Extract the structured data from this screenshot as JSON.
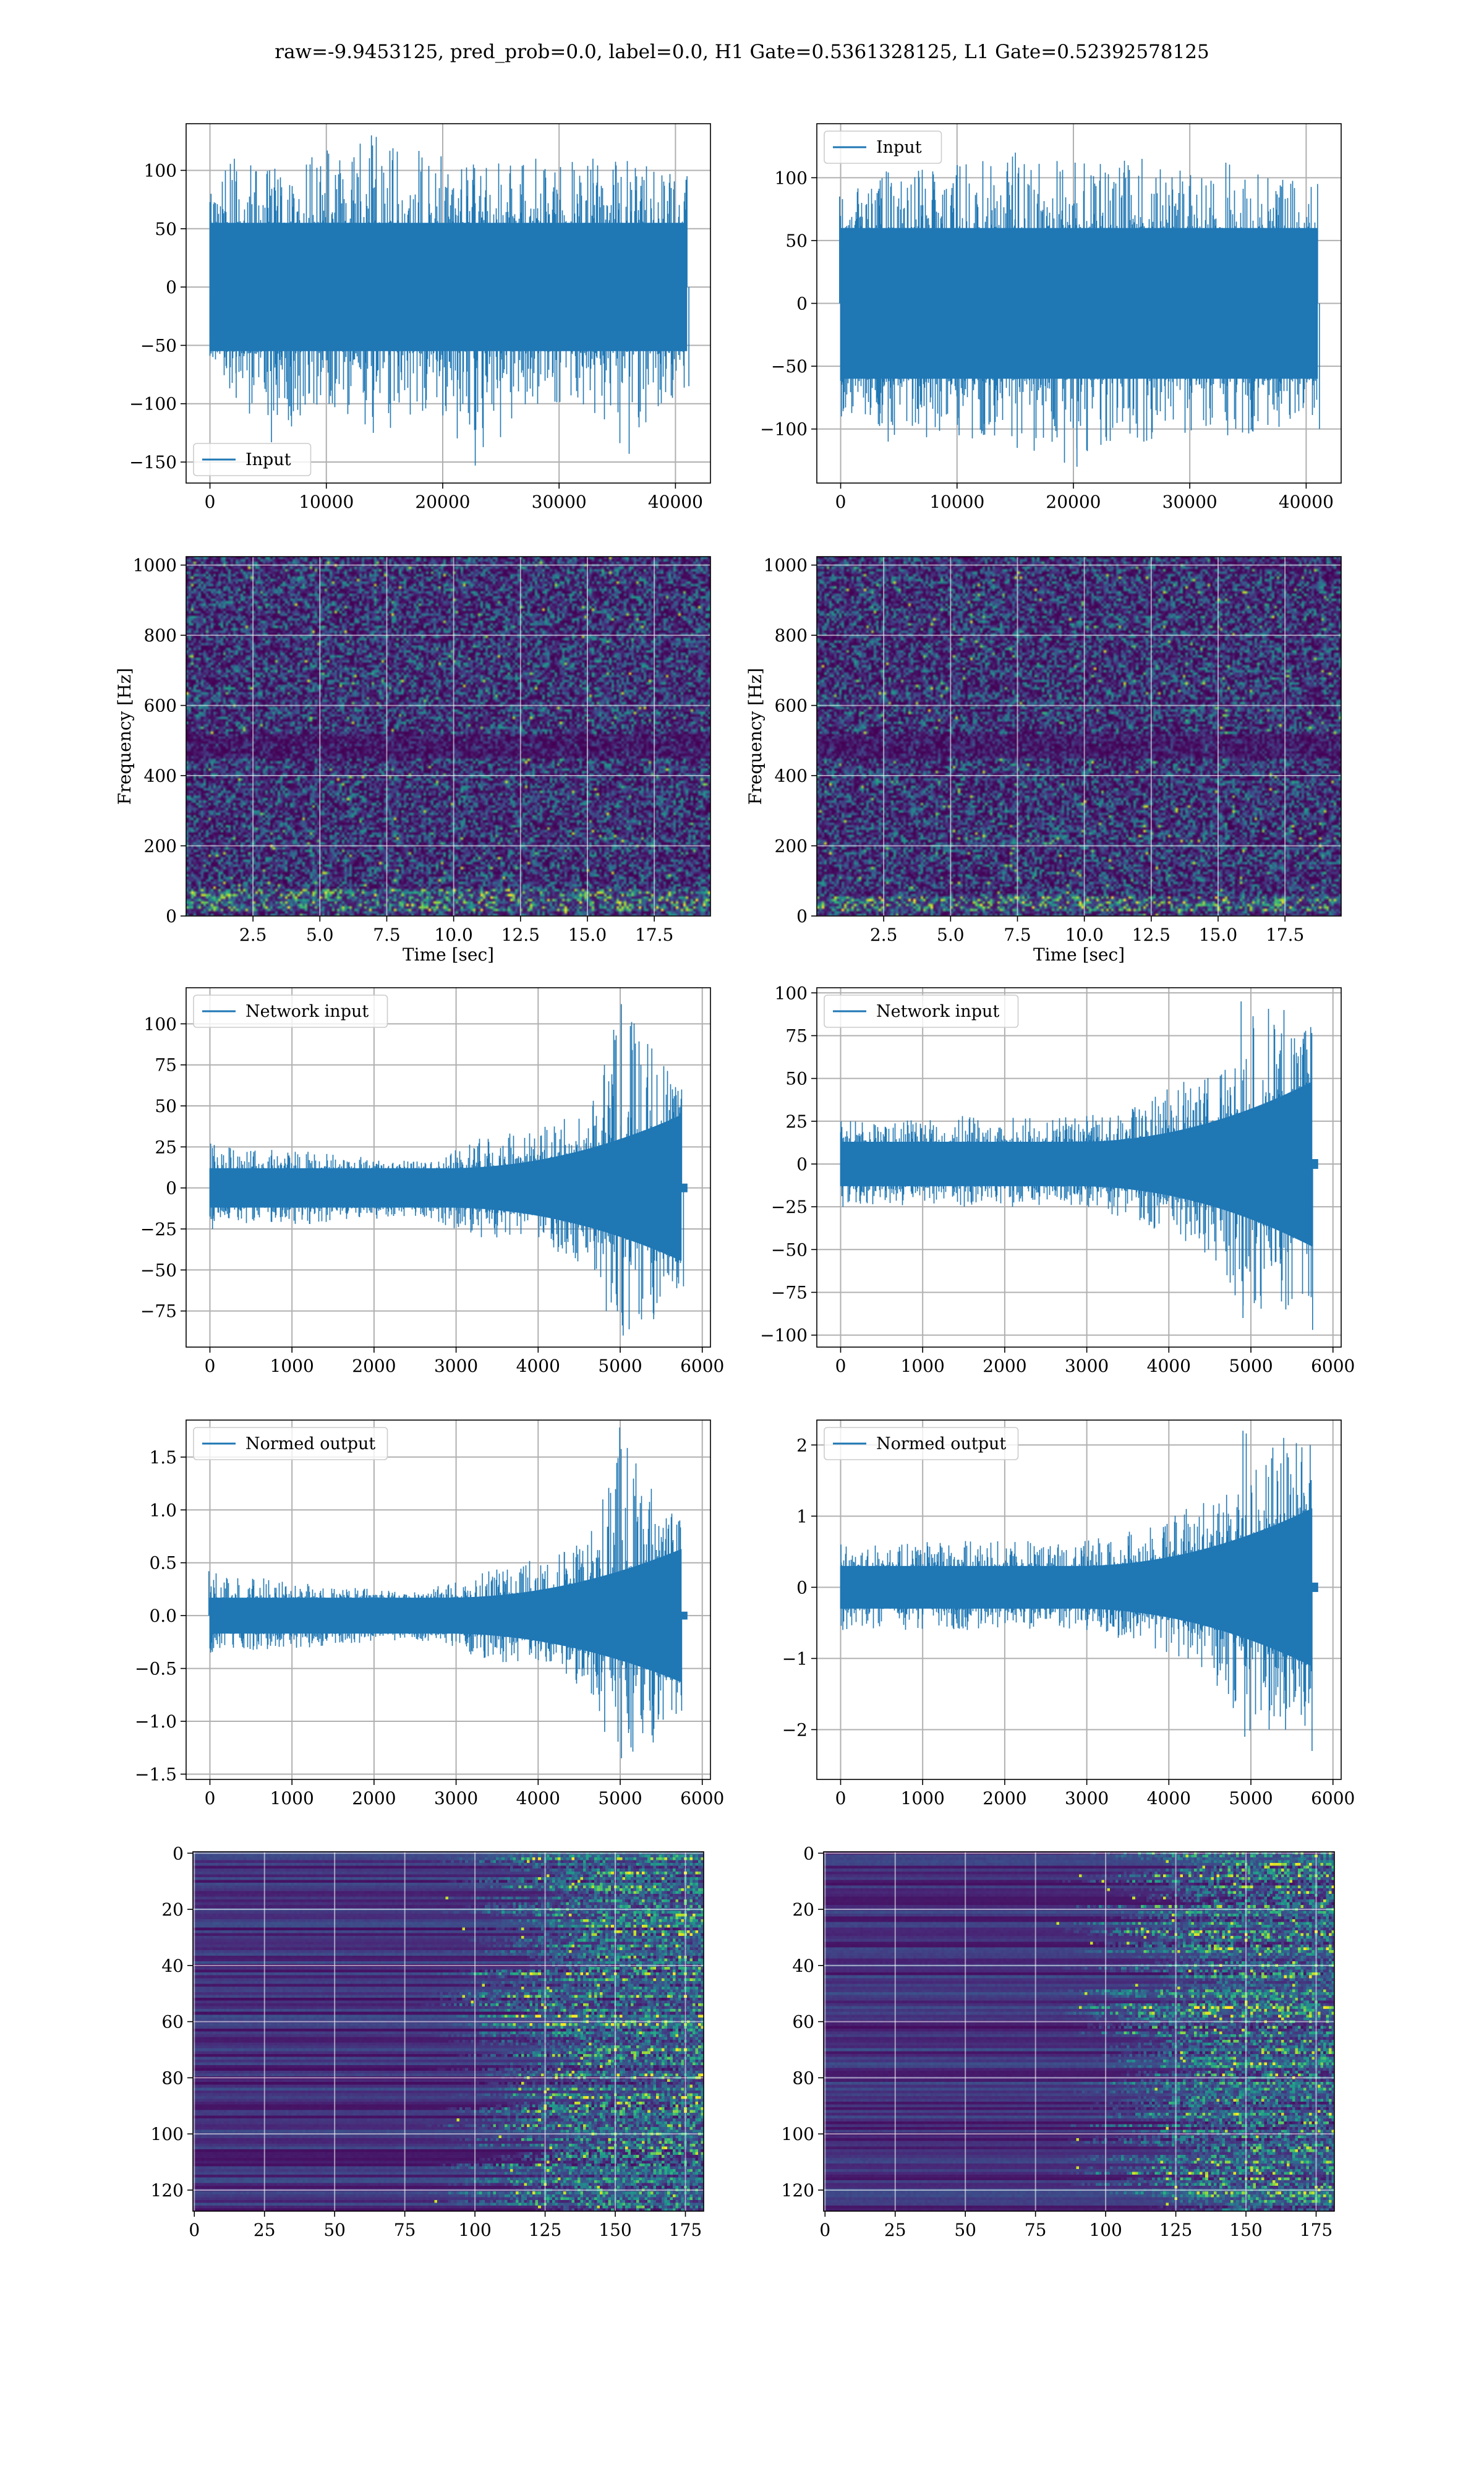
{
  "suptitle": "raw=-9.9453125, pred_prob=0.0, label=0.0, H1 Gate=0.5361328125, L1 Gate=0.52392578125",
  "colors": {
    "line": "#1f77b4",
    "grid": "#b0b0b0",
    "viridis": [
      "#440154",
      "#482878",
      "#3e4a89",
      "#31688e",
      "#26828e",
      "#1f9e89",
      "#35b779",
      "#6ece58",
      "#b5de2b",
      "#fde725"
    ]
  },
  "chart_data": [
    {
      "id": "h1-strain",
      "type": "line",
      "legend": "Input",
      "legend_loc": "lower-left",
      "grid": true,
      "xlim": [
        -2048,
        43008
      ],
      "ylim": [
        -168,
        140
      ],
      "xticks": [
        0,
        10000,
        20000,
        30000,
        40000
      ],
      "yticks": [
        100,
        50,
        0,
        -50,
        -100,
        -150
      ],
      "series": [
        {
          "x0": 0,
          "x1": 40960,
          "envelope": [
            {
              "x": 0,
              "lo": -60,
              "hi": 80
            },
            {
              "x": 2000,
              "lo": -95,
              "hi": 110
            },
            {
              "x": 5000,
              "lo": -133,
              "hi": 100
            },
            {
              "x": 10000,
              "lo": -100,
              "hi": 117
            },
            {
              "x": 14000,
              "lo": -125,
              "hi": 130
            },
            {
              "x": 20000,
              "lo": -110,
              "hi": 112
            },
            {
              "x": 22600,
              "lo": -153,
              "hi": 105
            },
            {
              "x": 28000,
              "lo": -100,
              "hi": 110
            },
            {
              "x": 33000,
              "lo": -108,
              "hi": 110
            },
            {
              "x": 36000,
              "lo": -143,
              "hi": 108
            },
            {
              "x": 40960,
              "lo": -85,
              "hi": 95
            }
          ],
          "core": [
            -55,
            55
          ]
        }
      ]
    },
    {
      "id": "l1-strain",
      "type": "line",
      "legend": "Input",
      "legend_loc": "upper-left",
      "grid": true,
      "xlim": [
        -2048,
        43008
      ],
      "ylim": [
        -143,
        143
      ],
      "xticks": [
        0,
        10000,
        20000,
        30000,
        40000
      ],
      "yticks": [
        100,
        50,
        0,
        -50,
        -100
      ],
      "series": [
        {
          "x0": 0,
          "x1": 40960,
          "envelope": [
            {
              "x": 0,
              "lo": -90,
              "hi": 85
            },
            {
              "x": 4000,
              "lo": -110,
              "hi": 105
            },
            {
              "x": 10000,
              "lo": -105,
              "hi": 110
            },
            {
              "x": 15000,
              "lo": -115,
              "hi": 120
            },
            {
              "x": 20000,
              "lo": -130,
              "hi": 112
            },
            {
              "x": 26000,
              "lo": -110,
              "hi": 115
            },
            {
              "x": 33000,
              "lo": -105,
              "hi": 112
            },
            {
              "x": 40960,
              "lo": -100,
              "hi": 95
            }
          ],
          "core": [
            -60,
            60
          ]
        }
      ]
    },
    {
      "id": "h1-spectrogram",
      "type": "heatmap",
      "grid": true,
      "xlabel": "Time [sec]",
      "ylabel": "Frequency [Hz]",
      "xlim": [
        0,
        19.6
      ],
      "ylim": [
        0,
        1024
      ],
      "xticks": [
        2.5,
        5.0,
        7.5,
        10.0,
        12.5,
        15.0,
        17.5
      ],
      "yticks": [
        0,
        200,
        400,
        600,
        800,
        1000
      ],
      "colormap": "viridis",
      "dark_bands_hz": [
        [
          455,
          525
        ]
      ],
      "bright_band_hz": [
        20,
        80
      ]
    },
    {
      "id": "l1-spectrogram",
      "type": "heatmap",
      "grid": true,
      "xlabel": "Time [sec]",
      "ylabel": "Frequency [Hz]",
      "xlim": [
        0,
        19.6
      ],
      "ylim": [
        0,
        1024
      ],
      "xticks": [
        2.5,
        5.0,
        7.5,
        10.0,
        12.5,
        15.0,
        17.5
      ],
      "yticks": [
        0,
        200,
        400,
        600,
        800,
        1000
      ],
      "colormap": "viridis",
      "dark_bands_hz": [
        [
          455,
          525
        ]
      ],
      "bright_band_hz": [
        20,
        60
      ]
    },
    {
      "id": "h1-network-input",
      "type": "line",
      "legend": "Network input",
      "legend_loc": "upper-left",
      "grid": true,
      "xlim": [
        -290,
        6100
      ],
      "ylim": [
        -97,
        122
      ],
      "xticks": [
        0,
        1000,
        2000,
        3000,
        4000,
        5000,
        6000
      ],
      "yticks": [
        100,
        75,
        50,
        25,
        0,
        -25,
        -50,
        -75
      ],
      "series": [
        {
          "x0": 0,
          "x1": 5740,
          "tail_end": 5820,
          "envelope": [
            {
              "x": 0,
              "lo": -25,
              "hi": 27
            },
            {
              "x": 1200,
              "lo": -22,
              "hi": 22
            },
            {
              "x": 2500,
              "lo": -17,
              "hi": 16
            },
            {
              "x": 3300,
              "lo": -30,
              "hi": 30
            },
            {
              "x": 4300,
              "lo": -40,
              "hi": 42
            },
            {
              "x": 4650,
              "lo": -50,
              "hi": 50
            },
            {
              "x": 4800,
              "lo": -75,
              "hi": 75
            },
            {
              "x": 5000,
              "lo": -90,
              "hi": 112
            },
            {
              "x": 5400,
              "lo": -80,
              "hi": 85
            },
            {
              "x": 5740,
              "lo": -60,
              "hi": 60
            }
          ],
          "core": [
            -12,
            12
          ],
          "core_growth": 0.45
        }
      ]
    },
    {
      "id": "l1-network-input",
      "type": "line",
      "legend": "Network input",
      "legend_loc": "upper-left",
      "grid": true,
      "xlim": [
        -290,
        6100
      ],
      "ylim": [
        -107,
        103
      ],
      "xticks": [
        0,
        1000,
        2000,
        3000,
        4000,
        5000,
        6000
      ],
      "yticks": [
        100,
        75,
        50,
        25,
        0,
        -25,
        -50,
        -75,
        -100
      ],
      "series": [
        {
          "x0": 0,
          "x1": 5740,
          "tail_end": 5820,
          "envelope": [
            {
              "x": 0,
              "lo": -25,
              "hi": 25
            },
            {
              "x": 1500,
              "lo": -25,
              "hi": 28
            },
            {
              "x": 3000,
              "lo": -25,
              "hi": 28
            },
            {
              "x": 4200,
              "lo": -45,
              "hi": 48
            },
            {
              "x": 4700,
              "lo": -65,
              "hi": 55
            },
            {
              "x": 4900,
              "lo": -90,
              "hi": 95
            },
            {
              "x": 5400,
              "lo": -85,
              "hi": 90
            },
            {
              "x": 5740,
              "lo": -97,
              "hi": 80
            }
          ],
          "core": [
            -13,
            13
          ],
          "core_growth": 0.45
        }
      ]
    },
    {
      "id": "h1-normed-output",
      "type": "line",
      "legend": "Normed output",
      "legend_loc": "upper-left",
      "grid": true,
      "xlim": [
        -290,
        6100
      ],
      "ylim": [
        -1.55,
        1.85
      ],
      "xticks": [
        0,
        1000,
        2000,
        3000,
        4000,
        5000,
        6000
      ],
      "yticks": [
        1.5,
        1.0,
        0.5,
        0.0,
        -0.5,
        -1.0,
        -1.5
      ],
      "series": [
        {
          "x0": 0,
          "x1": 5740,
          "tail_end": 5820,
          "envelope": [
            {
              "x": 0,
              "lo": -0.35,
              "hi": 0.42
            },
            {
              "x": 1200,
              "lo": -0.3,
              "hi": 0.3
            },
            {
              "x": 2500,
              "lo": -0.22,
              "hi": 0.22
            },
            {
              "x": 3300,
              "lo": -0.4,
              "hi": 0.4
            },
            {
              "x": 4300,
              "lo": -0.55,
              "hi": 0.6
            },
            {
              "x": 4650,
              "lo": -0.75,
              "hi": 0.8
            },
            {
              "x": 4800,
              "lo": -1.1,
              "hi": 1.1
            },
            {
              "x": 5000,
              "lo": -1.35,
              "hi": 1.78
            },
            {
              "x": 5400,
              "lo": -1.2,
              "hi": 1.2
            },
            {
              "x": 5740,
              "lo": -0.9,
              "hi": 0.9
            }
          ],
          "core": [
            -0.17,
            0.17
          ],
          "core_growth": 0.45
        }
      ]
    },
    {
      "id": "l1-normed-output",
      "type": "line",
      "legend": "Normed output",
      "legend_loc": "upper-left",
      "grid": true,
      "xlim": [
        -290,
        6100
      ],
      "ylim": [
        -2.7,
        2.35
      ],
      "xticks": [
        0,
        1000,
        2000,
        3000,
        4000,
        5000,
        6000
      ],
      "yticks": [
        2,
        1,
        0,
        -1,
        -2
      ],
      "series": [
        {
          "x0": 0,
          "x1": 5740,
          "tail_end": 5820,
          "envelope": [
            {
              "x": 0,
              "lo": -0.6,
              "hi": 0.6
            },
            {
              "x": 1500,
              "lo": -0.6,
              "hi": 0.65
            },
            {
              "x": 3000,
              "lo": -0.6,
              "hi": 0.65
            },
            {
              "x": 4200,
              "lo": -1.0,
              "hi": 1.1
            },
            {
              "x": 4700,
              "lo": -1.5,
              "hi": 1.3
            },
            {
              "x": 4900,
              "lo": -2.1,
              "hi": 2.2
            },
            {
              "x": 5400,
              "lo": -2.0,
              "hi": 2.1
            },
            {
              "x": 5740,
              "lo": -2.3,
              "hi": 2.0
            }
          ],
          "core": [
            -0.3,
            0.3
          ],
          "core_growth": 0.45
        }
      ]
    },
    {
      "id": "h1-feature-map",
      "type": "heatmap",
      "grid": true,
      "xlim": [
        -0.5,
        181.5
      ],
      "ylim": [
        127.5,
        -0.5
      ],
      "xticks": [
        0,
        25,
        50,
        75,
        100,
        125,
        150,
        175
      ],
      "yticks": [
        0,
        20,
        40,
        60,
        80,
        100,
        120
      ],
      "colormap": "viridis",
      "active_from_col": 120,
      "rows": 128,
      "cols": 182
    },
    {
      "id": "l1-feature-map",
      "type": "heatmap",
      "grid": true,
      "xlim": [
        -0.5,
        181.5
      ],
      "ylim": [
        127.5,
        -0.5
      ],
      "xticks": [
        0,
        25,
        50,
        75,
        100,
        125,
        150,
        175
      ],
      "yticks": [
        0,
        20,
        40,
        60,
        80,
        100,
        120
      ],
      "colormap": "viridis",
      "active_from_col": 120,
      "rows": 128,
      "cols": 182
    }
  ]
}
